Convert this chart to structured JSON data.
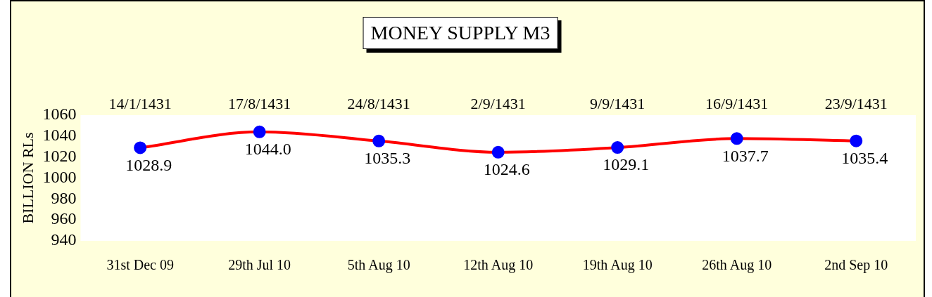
{
  "chart_data": {
    "type": "line",
    "title": "MONEY SUPPLY M3",
    "ylabel": "BILLION RLs",
    "categories": [
      "31st Dec 09",
      "29th Jul 10",
      "5th Aug 10",
      "12th Aug 10",
      "19th Aug 10",
      "26th Aug 10",
      "2nd Sep 10"
    ],
    "series": [
      {
        "color": "#ff0000",
        "colors": [
          "#0000ff",
          "#0000ff",
          "#0000ff",
          "#0000ff",
          "#0000ff",
          "#0000ff",
          "#0000ff"
        ],
        "values": [
          1028.9,
          1044.0,
          1035.3,
          1024.6,
          1029.1,
          1037.7,
          1035.4
        ],
        "value_labels": [
          "1028.9",
          "1044.0",
          "1035.3",
          "1024.6",
          "1029.1",
          "1037.7",
          "1035.4"
        ]
      }
    ],
    "annotations": [
      "14/1/1431",
      "17/8/1431",
      "24/8/1431",
      "2/9/1431",
      "9/9/1431",
      "16/9/1431",
      "23/9/1431"
    ],
    "ylim": [
      940,
      1060
    ],
    "yticks": [
      940,
      960,
      980,
      1000,
      1020,
      1040,
      1060
    ],
    "grid": false,
    "legend": false,
    "marker": "circle",
    "line_style": "solid"
  }
}
